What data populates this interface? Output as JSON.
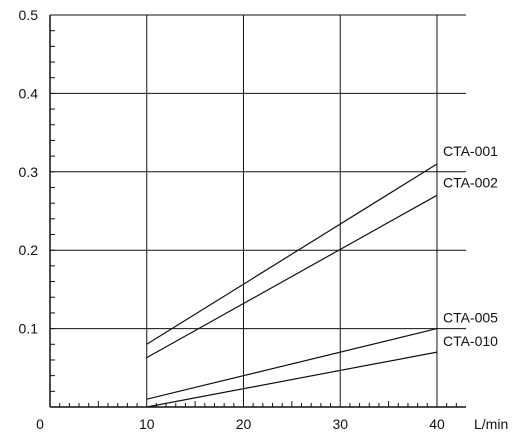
{
  "chart_data": {
    "type": "line",
    "title": "",
    "xlabel": "L/min",
    "ylabel": "",
    "xlim": [
      0,
      43
    ],
    "ylim": [
      0,
      0.5
    ],
    "x_ticks": [
      0,
      10,
      20,
      30,
      40
    ],
    "y_ticks": [
      0.1,
      0.2,
      0.3,
      0.4,
      0.5
    ],
    "x_tick_labels": [
      "0",
      "10",
      "20",
      "30",
      "40"
    ],
    "y_tick_labels": [
      "0.1",
      "0.2",
      "0.3",
      "0.4",
      "0.5"
    ],
    "grid": true,
    "series": [
      {
        "name": "CTA-001",
        "x": [
          10,
          40
        ],
        "y": [
          0.08,
          0.31
        ]
      },
      {
        "name": "CTA-002",
        "x": [
          10,
          40
        ],
        "y": [
          0.063,
          0.27
        ]
      },
      {
        "name": "CTA-005",
        "x": [
          10,
          40
        ],
        "y": [
          0.01,
          0.1
        ]
      },
      {
        "name": "CTA-010",
        "x": [
          10,
          40
        ],
        "y": [
          0.0,
          0.07
        ]
      }
    ]
  }
}
